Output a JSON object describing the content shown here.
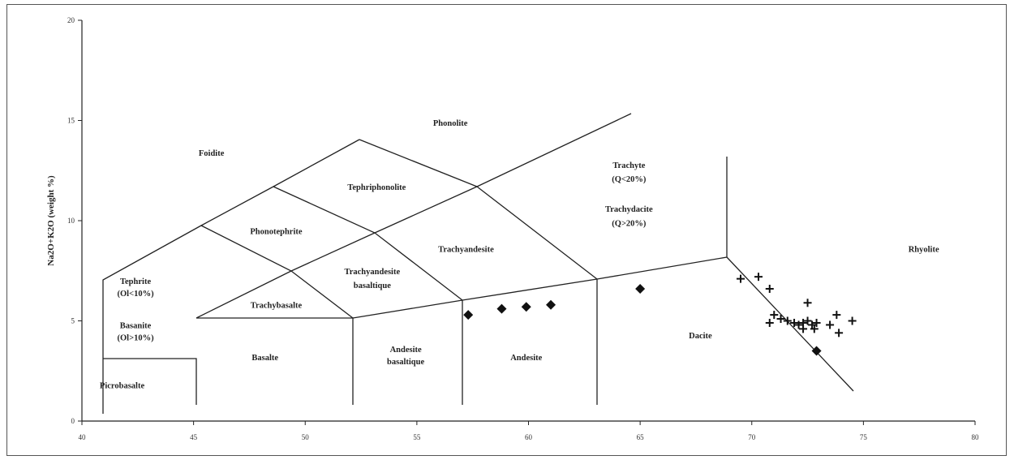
{
  "chart_data": {
    "type": "scatter",
    "title": "",
    "xlabel": "",
    "ylabel": "Na2O+K2O (weight %)",
    "xlim": [
      40,
      80
    ],
    "ylim": [
      0,
      20
    ],
    "x_ticks": [
      "40",
      "45",
      "50",
      "55",
      "60",
      "65",
      "70",
      "75",
      "80"
    ],
    "y_ticks": [
      "0",
      "5",
      "10",
      "15",
      "20"
    ],
    "grid": false,
    "fields": [
      {
        "label": "Foidite",
        "x": 45.8,
        "y": 13.4
      },
      {
        "label": "Phonolite",
        "x": 56.5,
        "y": 14.9
      },
      {
        "label": "Tephriphonolite",
        "x": 53.2,
        "y": 11.7
      },
      {
        "label": "Trachyte",
        "x": 64.5,
        "y": 12.8
      },
      {
        "label": "(Q<20%)",
        "x": 64.5,
        "y": 12.1
      },
      {
        "label": "Trachydacite",
        "x": 64.5,
        "y": 10.6
      },
      {
        "label": "(Q>20%)",
        "x": 64.5,
        "y": 9.9
      },
      {
        "label": "Phonotephrite",
        "x": 48.7,
        "y": 9.5
      },
      {
        "label": "Trachyandesite",
        "x": 57.2,
        "y": 8.6
      },
      {
        "label": "Rhyolite",
        "x": 77.7,
        "y": 8.6
      },
      {
        "label": "Tephrite",
        "x": 42.4,
        "y": 7.0
      },
      {
        "label": "(Ol<10%)",
        "x": 42.4,
        "y": 6.4
      },
      {
        "label": "Trachyandesite",
        "x": 53.0,
        "y": 7.5
      },
      {
        "label": "basaltique",
        "x": 53.0,
        "y": 6.8
      },
      {
        "label": "Trachybasalte",
        "x": 48.7,
        "y": 5.8
      },
      {
        "label": "Basanite",
        "x": 42.4,
        "y": 4.8
      },
      {
        "label": "(Ol>10%)",
        "x": 42.4,
        "y": 4.2
      },
      {
        "label": "Dacite",
        "x": 67.7,
        "y": 4.3
      },
      {
        "label": "Andesite",
        "x": 54.5,
        "y": 3.6
      },
      {
        "label": "basaltique",
        "x": 54.5,
        "y": 3.0
      },
      {
        "label": "Basalte",
        "x": 48.2,
        "y": 3.2
      },
      {
        "label": "Andesite",
        "x": 59.9,
        "y": 3.2
      },
      {
        "label": "Picrobasalte",
        "x": 41.8,
        "y": 1.8
      }
    ],
    "series": [
      {
        "marker": "diamond",
        "values": [
          [
            57.3,
            5.3
          ],
          [
            58.8,
            5.6
          ],
          [
            59.9,
            5.7
          ],
          [
            61.0,
            5.8
          ],
          [
            65.0,
            6.6
          ]
        ]
      },
      {
        "marker": "cross",
        "values": [
          [
            69.5,
            7.1
          ],
          [
            70.3,
            7.2
          ],
          [
            70.8,
            6.6
          ],
          [
            70.8,
            4.9
          ],
          [
            71.0,
            5.3
          ],
          [
            71.3,
            5.1
          ],
          [
            71.6,
            5.0
          ],
          [
            71.9,
            4.9
          ],
          [
            72.1,
            4.8
          ],
          [
            72.3,
            4.9
          ],
          [
            72.5,
            5.0
          ],
          [
            72.3,
            4.6
          ],
          [
            72.7,
            4.8
          ],
          [
            72.9,
            4.9
          ],
          [
            72.5,
            5.9
          ],
          [
            73.5,
            4.8
          ],
          [
            73.8,
            5.3
          ],
          [
            73.9,
            4.4
          ],
          [
            74.5,
            5.0
          ],
          [
            72.8,
            4.6
          ]
        ]
      },
      {
        "marker": "diamond",
        "values": [
          [
            72.9,
            3.5
          ]
        ]
      }
    ]
  }
}
